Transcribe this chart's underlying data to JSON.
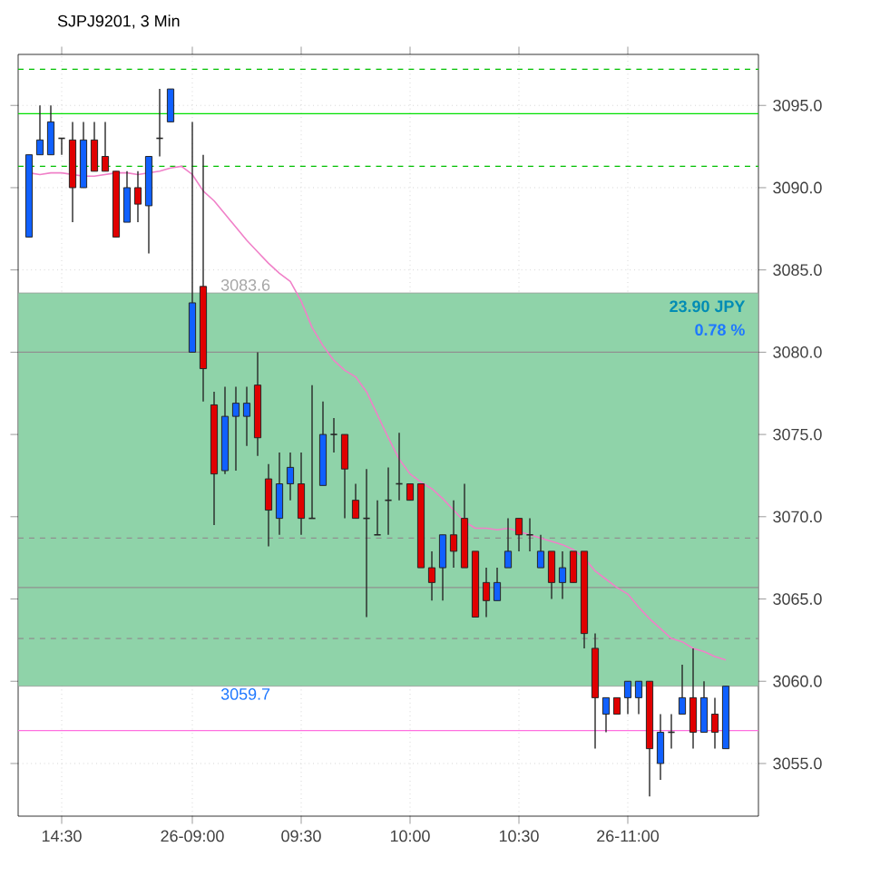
{
  "chart_data": {
    "type": "candlestick",
    "title": "SJPJ9201, 3 Min",
    "categories": [
      null,
      null,
      null,
      "14:30",
      null,
      null,
      null,
      null,
      null,
      null,
      null,
      null,
      null,
      null,
      null,
      "26-09:00",
      null,
      null,
      null,
      null,
      null,
      null,
      null,
      null,
      null,
      "09:30",
      null,
      null,
      null,
      null,
      null,
      null,
      null,
      null,
      null,
      "10:00",
      null,
      null,
      null,
      null,
      null,
      null,
      null,
      null,
      null,
      "10:30",
      null,
      null,
      null,
      null,
      null,
      null,
      null,
      null,
      null,
      "26-11:00",
      null,
      null,
      null,
      null,
      null,
      null,
      null,
      null,
      null
    ],
    "ohlc": [
      [
        3087.0,
        3092.0,
        3087.0,
        3092.0
      ],
      [
        3092.0,
        3095.0,
        3092.0,
        3092.9
      ],
      [
        3092.0,
        3095.0,
        3092.0,
        3094.0
      ],
      [
        3093.0,
        3093.0,
        3092.0,
        3093.0
      ],
      [
        3092.9,
        3094.0,
        3087.9,
        3090.0
      ],
      [
        3090.0,
        3094.0,
        3090.0,
        3092.9
      ],
      [
        3092.9,
        3094.0,
        3091.0,
        3091.0
      ],
      [
        3091.9,
        3094.0,
        3091.0,
        3091.0
      ],
      [
        3091.0,
        3091.0,
        3087.0,
        3087.0
      ],
      [
        3087.9,
        3091.0,
        3087.9,
        3090.0
      ],
      [
        3090.0,
        3091.0,
        3087.9,
        3089.0
      ],
      [
        3088.9,
        3091.9,
        3086.0,
        3091.9
      ],
      [
        3093.0,
        3096.0,
        3091.9,
        3093.0
      ],
      [
        3094.0,
        3096.0,
        3094.0,
        3096.0
      ],
      null,
      [
        3080.0,
        3094.0,
        3080.0,
        3083.0
      ],
      [
        3084.0,
        3092.0,
        3077.0,
        3079.0
      ],
      [
        3076.8,
        3077.6,
        3069.5,
        3072.6
      ],
      [
        3072.8,
        3077.9,
        3072.6,
        3076.1
      ],
      [
        3076.1,
        3077.9,
        3072.8,
        3076.9
      ],
      [
        3076.1,
        3077.9,
        3074.3,
        3076.9
      ],
      [
        3078.0,
        3080.0,
        3073.7,
        3074.8
      ],
      [
        3072.3,
        3073.2,
        3068.2,
        3070.4
      ],
      [
        3069.9,
        3073.9,
        3068.9,
        3072.0
      ],
      [
        3072.0,
        3073.9,
        3071.0,
        3073.0
      ],
      [
        3072.0,
        3073.9,
        3068.9,
        3069.9
      ],
      [
        3069.9,
        3078.0,
        3069.9,
        3069.9
      ],
      [
        3071.9,
        3077.0,
        3071.9,
        3075.0
      ],
      [
        3075.0,
        3076.0,
        3073.9,
        3075.0
      ],
      [
        3075.0,
        3075.0,
        3069.9,
        3072.9
      ],
      [
        3071.0,
        3072.0,
        3069.9,
        3069.9
      ],
      [
        3069.9,
        3072.9,
        3063.9,
        3069.9
      ],
      [
        3068.9,
        3071.0,
        3068.9,
        3068.9
      ],
      [
        3071.0,
        3073.0,
        3068.9,
        3071.0
      ],
      [
        3072.0,
        3075.1,
        3071.0,
        3072.0
      ],
      [
        3072.0,
        3072.0,
        3071.0,
        3071.0
      ],
      [
        3072.0,
        3072.0,
        3066.9,
        3066.9
      ],
      [
        3066.9,
        3067.9,
        3064.9,
        3066.0
      ],
      [
        3066.9,
        3068.9,
        3064.9,
        3068.9
      ],
      [
        3068.9,
        3071.0,
        3066.9,
        3067.9
      ],
      [
        3069.9,
        3072.0,
        3066.9,
        3066.9
      ],
      [
        3067.9,
        3067.9,
        3063.9,
        3063.9
      ],
      [
        3066.0,
        3066.9,
        3063.9,
        3064.9
      ],
      [
        3064.9,
        3066.9,
        3064.9,
        3066.0
      ],
      [
        3066.9,
        3069.9,
        3066.9,
        3067.9
      ],
      [
        3069.9,
        3069.9,
        3067.9,
        3068.9
      ],
      [
        3068.9,
        3069.9,
        3067.9,
        3068.9
      ],
      [
        3066.9,
        3068.9,
        3066.9,
        3067.9
      ],
      [
        3067.9,
        3067.9,
        3065.0,
        3066.0
      ],
      [
        3066.0,
        3067.9,
        3065.0,
        3066.9
      ],
      [
        3067.9,
        3067.9,
        3066.0,
        3066.0
      ],
      [
        3067.9,
        3067.9,
        3062.0,
        3062.9
      ],
      [
        3062.0,
        3062.9,
        3055.9,
        3059.0
      ],
      [
        3058.0,
        3059.0,
        3056.9,
        3059.0
      ],
      [
        3059.0,
        3059.0,
        3058.0,
        3058.0
      ],
      [
        3059.0,
        3060.0,
        3058.0,
        3060.0
      ],
      [
        3059.0,
        3060.0,
        3058.0,
        3060.0
      ],
      [
        3060.0,
        3060.0,
        3053.0,
        3055.9
      ],
      [
        3055.0,
        3058.0,
        3054.0,
        3056.9
      ],
      [
        3056.9,
        3058.0,
        3055.9,
        3056.9
      ],
      [
        3058.0,
        3061.0,
        3058.0,
        3059.0
      ],
      [
        3059.0,
        3062.0,
        3055.9,
        3056.9
      ],
      [
        3056.9,
        3060.0,
        3056.9,
        3059.0
      ],
      [
        3058.0,
        3059.0,
        3055.9,
        3056.9
      ],
      [
        3055.9,
        3059.7,
        3055.9,
        3059.7
      ]
    ],
    "colors": [
      "#1060ff",
      "#1060ff",
      "#1060ff",
      null,
      "#e00000",
      "#1060ff",
      "#e00000",
      "#e00000",
      "#e00000",
      "#1060ff",
      "#e00000",
      "#1060ff",
      null,
      "#1060ff",
      null,
      "#1060ff",
      "#e00000",
      "#e00000",
      "#1060ff",
      "#1060ff",
      "#1060ff",
      "#e00000",
      "#e00000",
      "#1060ff",
      "#1060ff",
      "#e00000",
      null,
      "#1060ff",
      null,
      "#e00000",
      "#e00000",
      null,
      null,
      null,
      null,
      "#e00000",
      "#e00000",
      "#e00000",
      "#1060ff",
      "#e00000",
      "#e00000",
      "#e00000",
      "#e00000",
      "#1060ff",
      "#1060ff",
      "#e00000",
      null,
      "#1060ff",
      "#e00000",
      "#1060ff",
      "#e00000",
      "#e00000",
      "#e00000",
      "#1060ff",
      "#e00000",
      "#1060ff",
      "#1060ff",
      "#e00000",
      "#1060ff",
      null,
      "#1060ff",
      "#e00000",
      "#1060ff",
      "#e00000",
      "#1060ff"
    ],
    "series": [
      {
        "type": "line",
        "color": "#f080c8",
        "values": [
          3090.9,
          3090.8,
          3090.9,
          3090.9,
          3090.8,
          3090.7,
          3090.7,
          3090.8,
          3090.9,
          3090.9,
          3090.8,
          3090.9,
          3091.0,
          3091.2,
          3091.3,
          3090.8,
          3089.8,
          3089.2,
          3088.4,
          3087.6,
          3086.8,
          3086.1,
          3085.4,
          3084.8,
          3084.3,
          3083.1,
          3081.5,
          3080.4,
          3079.5,
          3078.9,
          3078.5,
          3077.6,
          3076.2,
          3074.8,
          3073.5,
          3072.6,
          3072.1,
          3071.7,
          3071.1,
          3070.4,
          3069.7,
          3069.3,
          3069.3,
          3069.2,
          3069.3,
          3069.1,
          3068.9,
          3068.7,
          3068.5,
          3068.3,
          3068.0,
          3067.5,
          3066.7,
          3066.2,
          3065.7,
          3065.3,
          3064.5,
          3063.8,
          3063.2,
          3062.6,
          3062.4,
          3062.0,
          3061.8,
          3061.5,
          3061.3
        ]
      }
    ],
    "ylim": [
      3051.8,
      3098.1
    ],
    "yticks": [
      {
        "value": 3055,
        "label": "3055.0"
      },
      {
        "value": 3060,
        "label": "3060.0"
      },
      {
        "value": 3065,
        "label": "3065.0"
      },
      {
        "value": 3070,
        "label": "3070.0"
      },
      {
        "value": 3075,
        "label": "3075.0"
      },
      {
        "value": 3080,
        "label": "3080.0"
      },
      {
        "value": 3085,
        "label": "3085.0"
      },
      {
        "value": 3090,
        "label": "3090.0"
      },
      {
        "value": 3095,
        "label": "3095.0"
      }
    ],
    "grid": true,
    "bands": [
      {
        "axis": "y",
        "from": 3059.7,
        "to": 3083.6,
        "color": "#8fd3a9"
      }
    ],
    "ref_lines": [
      {
        "axis": "y",
        "value": 3097.2,
        "color": "#00c000",
        "line_style": "dashed"
      },
      {
        "axis": "y",
        "value": 3094.5,
        "color": "#00e000",
        "line_style": "solid"
      },
      {
        "axis": "y",
        "value": 3091.3,
        "color": "#00c000",
        "line_style": "dashed"
      },
      {
        "axis": "y",
        "value": 3080.0,
        "color": "#909090",
        "line_style": "solid"
      },
      {
        "axis": "y",
        "value": 3068.7,
        "color": "#909090",
        "line_style": "dashed"
      },
      {
        "axis": "y",
        "value": 3065.7,
        "color": "#909090",
        "line_style": "solid"
      },
      {
        "axis": "y",
        "value": 3062.6,
        "color": "#909090",
        "line_style": "dashed"
      },
      {
        "axis": "y",
        "value": 3057.0,
        "color": "#ff70e0",
        "line_style": "solid"
      }
    ],
    "annotations": [
      {
        "text": "3083.6",
        "y": 3083.6
      },
      {
        "text": "3059.7",
        "y": 3059.7
      },
      "23.90 JPY",
      "0.78 %"
    ]
  }
}
